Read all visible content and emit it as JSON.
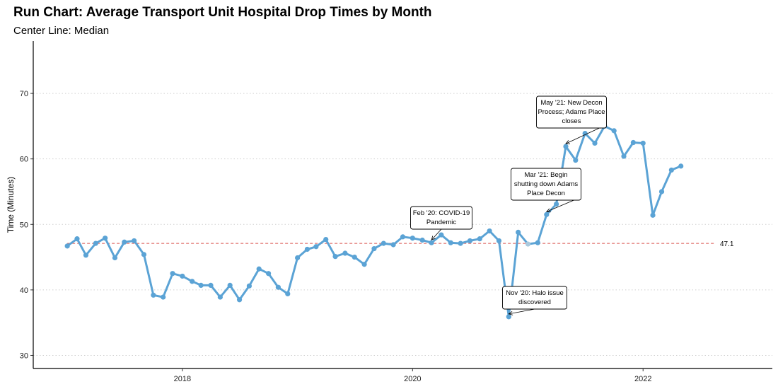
{
  "chart_data": {
    "type": "line",
    "title": "Run Chart: Average Transport Unit Hospital Drop Times by Month",
    "subtitle": "Center Line: Median",
    "ylabel": "Time (Minutes)",
    "xlabel": "",
    "ylim": [
      28,
      78
    ],
    "xlim": [
      "2016-09-15",
      "2023-02-15"
    ],
    "yticks": [
      30,
      40,
      50,
      60,
      70
    ],
    "xticks": [
      {
        "label": "2018",
        "date": "2018-01-01"
      },
      {
        "label": "2020",
        "date": "2020-01-01"
      },
      {
        "label": "2022",
        "date": "2022-01-01"
      }
    ],
    "grid": "horizontal dotted",
    "line_color": "#5ba3d5",
    "median_color": "#d9534f",
    "highlight_color": "#aac9dd",
    "median": {
      "value": 47.1,
      "label": "47.1"
    },
    "series": [
      {
        "x": [
          "2017-01",
          "2017-02",
          "2017-03",
          "2017-04",
          "2017-05",
          "2017-06",
          "2017-07",
          "2017-08",
          "2017-09",
          "2017-10",
          "2017-11",
          "2017-12",
          "2018-01",
          "2018-02",
          "2018-03",
          "2018-04",
          "2018-05",
          "2018-06",
          "2018-07",
          "2018-08",
          "2018-09",
          "2018-10",
          "2018-11",
          "2018-12",
          "2019-01",
          "2019-02",
          "2019-03",
          "2019-04",
          "2019-05",
          "2019-06",
          "2019-07",
          "2019-08",
          "2019-09",
          "2019-10",
          "2019-11",
          "2019-12",
          "2020-01",
          "2020-02",
          "2020-03",
          "2020-04",
          "2020-05",
          "2020-06",
          "2020-07",
          "2020-08",
          "2020-09",
          "2020-10",
          "2020-11",
          "2020-12",
          "2021-01",
          "2021-02",
          "2021-03",
          "2021-04",
          "2021-05",
          "2021-06",
          "2021-07",
          "2021-08",
          "2021-09",
          "2021-10",
          "2021-11",
          "2021-12",
          "2022-01",
          "2022-02",
          "2022-03",
          "2022-04",
          "2022-05"
        ],
        "values": [
          46.7,
          47.8,
          45.3,
          47.1,
          47.9,
          44.9,
          47.3,
          47.5,
          45.4,
          39.2,
          38.9,
          42.5,
          42.1,
          41.3,
          40.7,
          40.7,
          38.9,
          40.7,
          38.5,
          40.6,
          43.2,
          42.5,
          40.4,
          39.4,
          44.9,
          46.2,
          46.6,
          47.7,
          45.1,
          45.6,
          45.0,
          43.9,
          46.3,
          47.1,
          46.9,
          48.1,
          47.9,
          47.6,
          47.2,
          48.4,
          47.2,
          47.1,
          47.5,
          47.8,
          49.0,
          47.5,
          35.9,
          48.8,
          47.0,
          47.2,
          51.5,
          53.1,
          61.9,
          59.8,
          63.9,
          62.4,
          65.0,
          64.3,
          60.4,
          62.5,
          62.4,
          51.4,
          55.0,
          58.3,
          58.9
        ],
        "highlight_x": [
          "2021-01"
        ]
      }
    ],
    "annotations": [
      {
        "lines": [
          "Feb '20: COVID-19",
          "Pandemic"
        ],
        "target_x": "2020-03"
      },
      {
        "lines": [
          "Nov '20: Halo issue",
          "discovered"
        ],
        "target_x": "2020-11"
      },
      {
        "lines": [
          "Mar '21: Begin",
          "shutting down Adams",
          "Place Decon"
        ],
        "target_x": "2021-03"
      },
      {
        "lines": [
          "May '21: New Decon",
          "Process; Adams Place",
          "closes"
        ],
        "target_x": "2021-05"
      }
    ]
  }
}
